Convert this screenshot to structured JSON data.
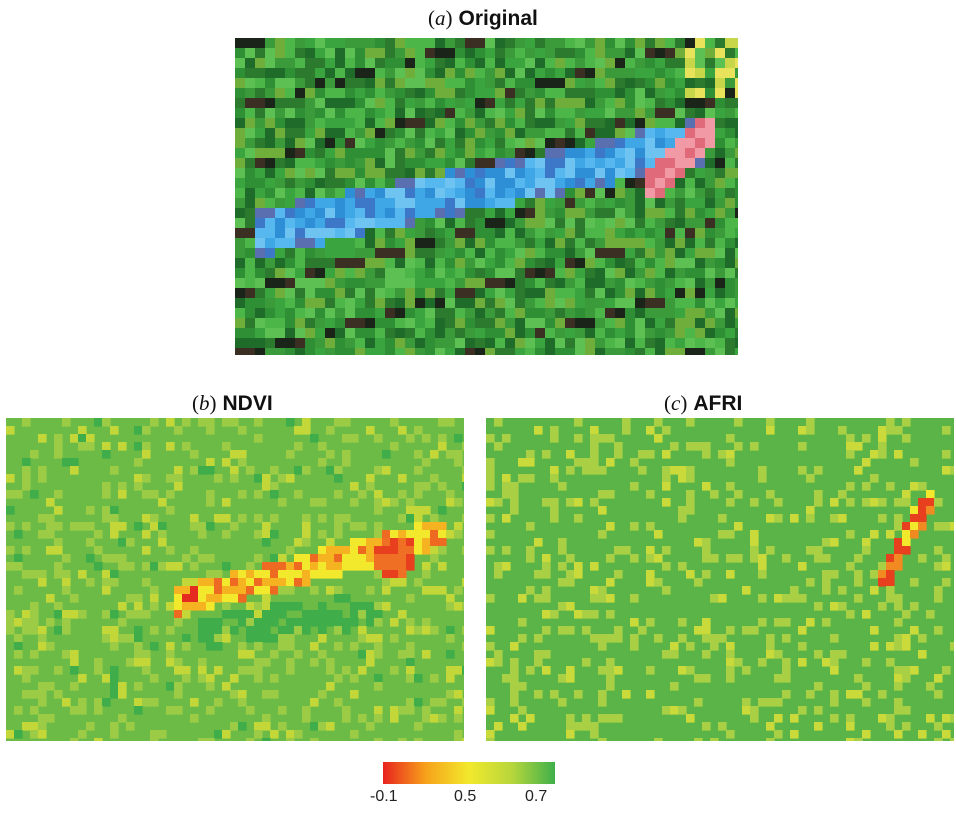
{
  "panels": [
    {
      "letter": "a",
      "title": "Original"
    },
    {
      "letter": "b",
      "title": "NDVI"
    },
    {
      "letter": "c",
      "title": "AFRI"
    }
  ],
  "colorbar": {
    "ticks": [
      "-0.1",
      "0.5",
      "0.7"
    ],
    "colors": [
      "#e8231f",
      "#f7a21b",
      "#f2e92c",
      "#b7d63c",
      "#3fb04a"
    ]
  },
  "palette": {
    "vegetation": "#3fae4a",
    "water": "#3fa7e6",
    "shadow": "#1c241a"
  }
}
